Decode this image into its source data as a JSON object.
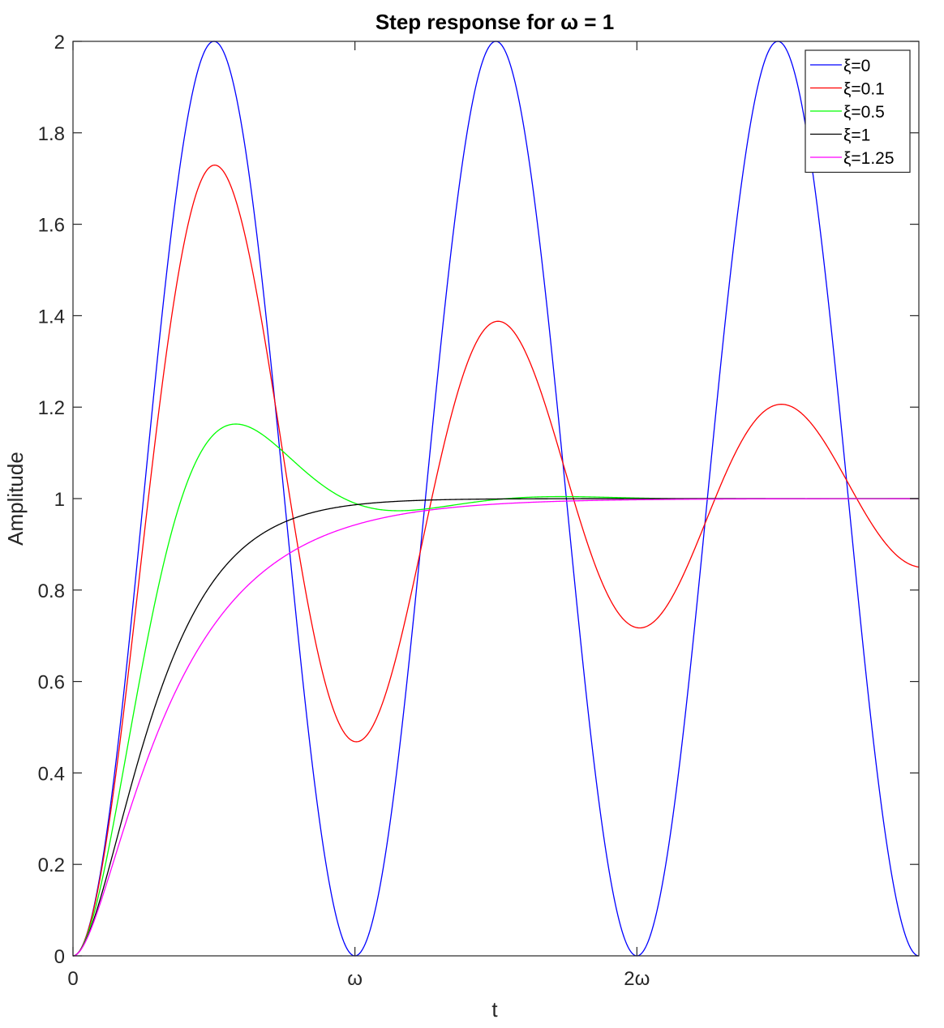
{
  "chart_data": {
    "type": "line",
    "title": "Step response for ω = 1",
    "xlabel": "t",
    "ylabel": "Amplitude",
    "xlim": [
      0,
      18.85
    ],
    "ylim": [
      0,
      2
    ],
    "x_ticks": [
      {
        "value": 0,
        "label": "0"
      },
      {
        "value": 6.2832,
        "label": "ω"
      },
      {
        "value": 12.5664,
        "label": "2ω"
      }
    ],
    "y_ticks": [
      {
        "value": 0,
        "label": "0"
      },
      {
        "value": 0.2,
        "label": "0.2"
      },
      {
        "value": 0.4,
        "label": "0.4"
      },
      {
        "value": 0.6,
        "label": "0.6"
      },
      {
        "value": 0.8,
        "label": "0.8"
      },
      {
        "value": 1.0,
        "label": "1"
      },
      {
        "value": 1.2,
        "label": "1.2"
      },
      {
        "value": 1.4,
        "label": "1.4"
      },
      {
        "value": 1.6,
        "label": "1.6"
      },
      {
        "value": 1.8,
        "label": "1.8"
      },
      {
        "value": 2.0,
        "label": "2"
      }
    ],
    "omega": 1,
    "legend_position": "top-right",
    "grid": false,
    "series": [
      {
        "name": "ξ=0",
        "zeta": 0,
        "color": "#0000ff"
      },
      {
        "name": "ξ=0.1",
        "zeta": 0.1,
        "color": "#ff0000"
      },
      {
        "name": "ξ=0.5",
        "zeta": 0.5,
        "color": "#00ff00"
      },
      {
        "name": "ξ=1",
        "zeta": 1,
        "color": "#000000"
      },
      {
        "name": "ξ=1.25",
        "zeta": 1.25,
        "color": "#ff00ff"
      }
    ]
  }
}
